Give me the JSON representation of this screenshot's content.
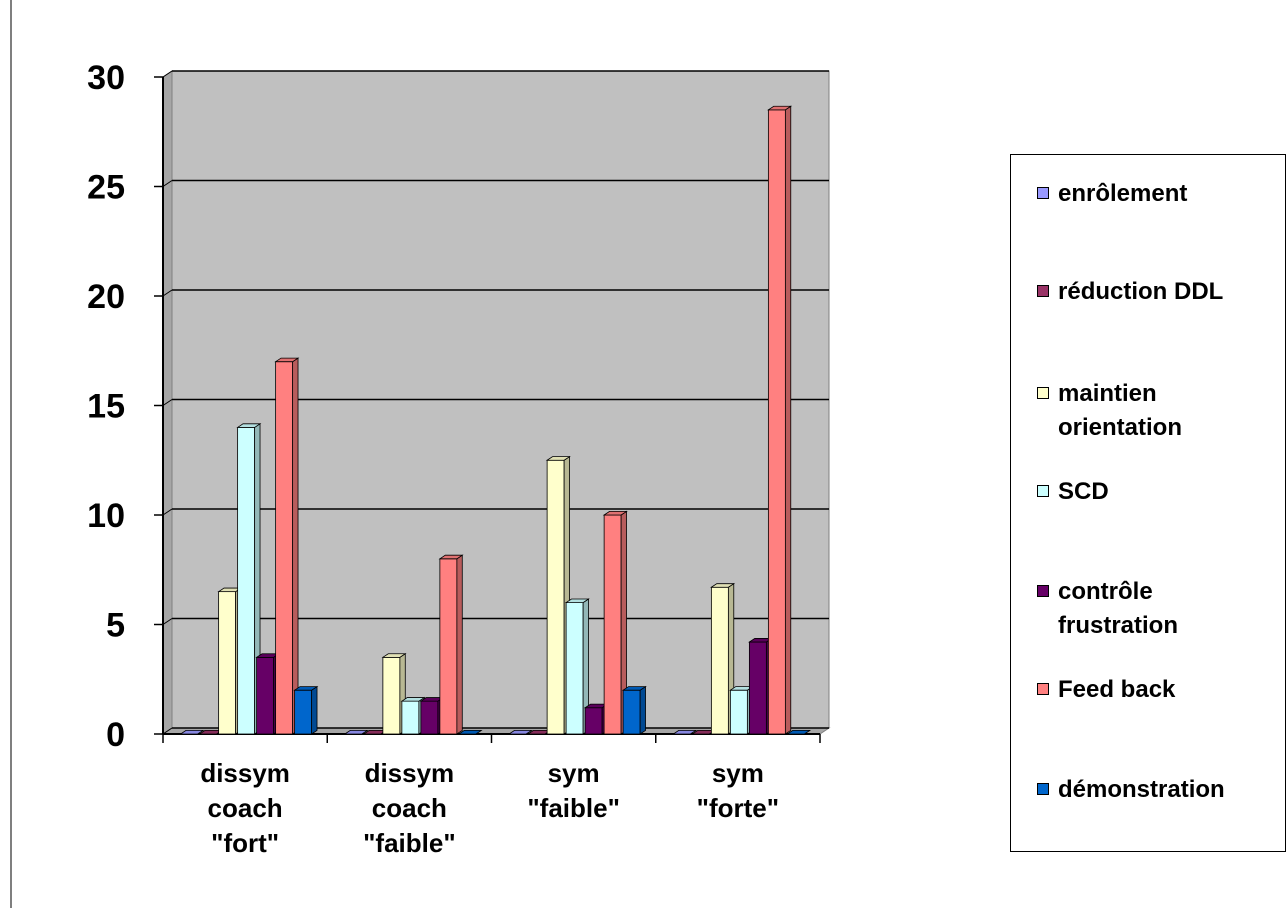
{
  "chart_data": {
    "type": "bar",
    "categories": [
      "dissym\ncoach\n\"fort\"",
      "dissym\ncoach\n\"faible\"",
      "sym\n\"faible\"",
      "sym\n\"forte\""
    ],
    "series": [
      {
        "name": "enrôlement",
        "values": [
          0,
          0,
          0,
          0
        ],
        "color": "#9999ff"
      },
      {
        "name": "réduction DDL",
        "values": [
          0,
          0,
          0,
          0
        ],
        "color": "#993366"
      },
      {
        "name": "maintien\norientation",
        "values": [
          6.5,
          3.5,
          12.5,
          6.7
        ],
        "color": "#ffffcc"
      },
      {
        "name": "SCD",
        "values": [
          14,
          1.5,
          6,
          2
        ],
        "color": "#ccffff"
      },
      {
        "name": "contrôle\nfrustration",
        "values": [
          3.5,
          1.5,
          1.2,
          4.2
        ],
        "color": "#660066"
      },
      {
        "name": "Feed back",
        "values": [
          17,
          8,
          10,
          28.5
        ],
        "color": "#ff8080"
      },
      {
        "name": "démonstration",
        "values": [
          2,
          0,
          2,
          0
        ],
        "color": "#0066cc"
      }
    ],
    "y_ticks": [
      "0",
      "5",
      "10",
      "15",
      "20",
      "25",
      "30"
    ],
    "ylim": [
      0,
      30
    ],
    "grid": true,
    "legend_position": "right",
    "title": "",
    "xlabel": "",
    "ylabel": ""
  }
}
